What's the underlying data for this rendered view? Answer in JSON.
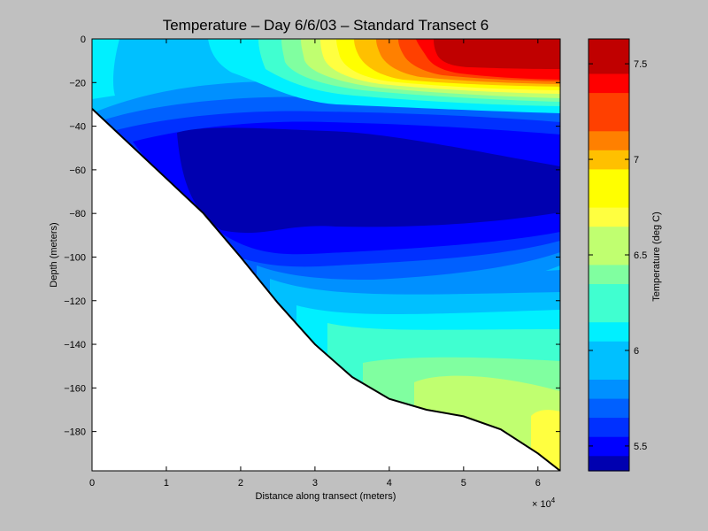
{
  "chart_data": {
    "type": "heatmap",
    "title": "Temperature – Day 6/6/03 – Standard Transect 6",
    "xlabel": "Distance along transect (meters)",
    "ylabel": "Depth (meters)",
    "colorbar_label": "Temperature (deg C)",
    "x_exponent_label": "× 10",
    "x_exponent_power": "4",
    "xlim": [
      0,
      6.3
    ],
    "ylim": [
      -198,
      0
    ],
    "x_ticks": [
      0,
      1,
      2,
      3,
      4,
      5,
      6
    ],
    "x_tick_labels": [
      "0",
      "1",
      "2",
      "3",
      "4",
      "5",
      "6"
    ],
    "y_ticks": [
      0,
      -20,
      -40,
      -60,
      -80,
      -100,
      -120,
      -140,
      -160,
      -180
    ],
    "y_tick_labels": [
      "0",
      "−20",
      "−40",
      "−60",
      "−80",
      "−100",
      "−120",
      "−140",
      "−160",
      "−180"
    ],
    "colorbar_range": [
      5.37,
      7.63
    ],
    "colorbar_ticks": [
      5.5,
      6,
      6.5,
      7,
      7.5
    ],
    "colorbar_tick_labels": [
      "5.5",
      "6",
      "6.5",
      "7",
      "7.5"
    ],
    "colorbar_levels": [
      {
        "from": 5.37,
        "to": 5.45,
        "color": "#0000b0"
      },
      {
        "from": 5.45,
        "to": 5.55,
        "color": "#0000ff"
      },
      {
        "from": 5.55,
        "to": 5.65,
        "color": "#0030ff"
      },
      {
        "from": 5.65,
        "to": 5.75,
        "color": "#0060ff"
      },
      {
        "from": 5.75,
        "to": 5.85,
        "color": "#0090ff"
      },
      {
        "from": 5.85,
        "to": 6.05,
        "color": "#00c0ff"
      },
      {
        "from": 6.05,
        "to": 6.15,
        "color": "#00f0ff"
      },
      {
        "from": 6.15,
        "to": 6.35,
        "color": "#40ffd0"
      },
      {
        "from": 6.35,
        "to": 6.45,
        "color": "#80ffa0"
      },
      {
        "from": 6.45,
        "to": 6.65,
        "color": "#c0ff70"
      },
      {
        "from": 6.65,
        "to": 6.75,
        "color": "#ffff40"
      },
      {
        "from": 6.75,
        "to": 6.95,
        "color": "#ffff00"
      },
      {
        "from": 6.95,
        "to": 7.05,
        "color": "#ffc000"
      },
      {
        "from": 7.05,
        "to": 7.15,
        "color": "#ff8000"
      },
      {
        "from": 7.15,
        "to": 7.35,
        "color": "#ff4000"
      },
      {
        "from": 7.35,
        "to": 7.45,
        "color": "#ff0000"
      },
      {
        "from": 7.45,
        "to": 7.63,
        "color": "#c00000"
      }
    ],
    "seafloor_profile": {
      "x": [
        0,
        0.5,
        1.0,
        1.5,
        2.0,
        2.5,
        3.0,
        3.5,
        4.0,
        4.5,
        5.0,
        5.5,
        6.0,
        6.3
      ],
      "depth": [
        -32,
        -48,
        -64,
        -80,
        -100,
        -121,
        -140,
        -155,
        -165,
        -170,
        -173,
        -179,
        -190,
        -198
      ]
    },
    "grid": false,
    "legend": "colorbar-right"
  }
}
